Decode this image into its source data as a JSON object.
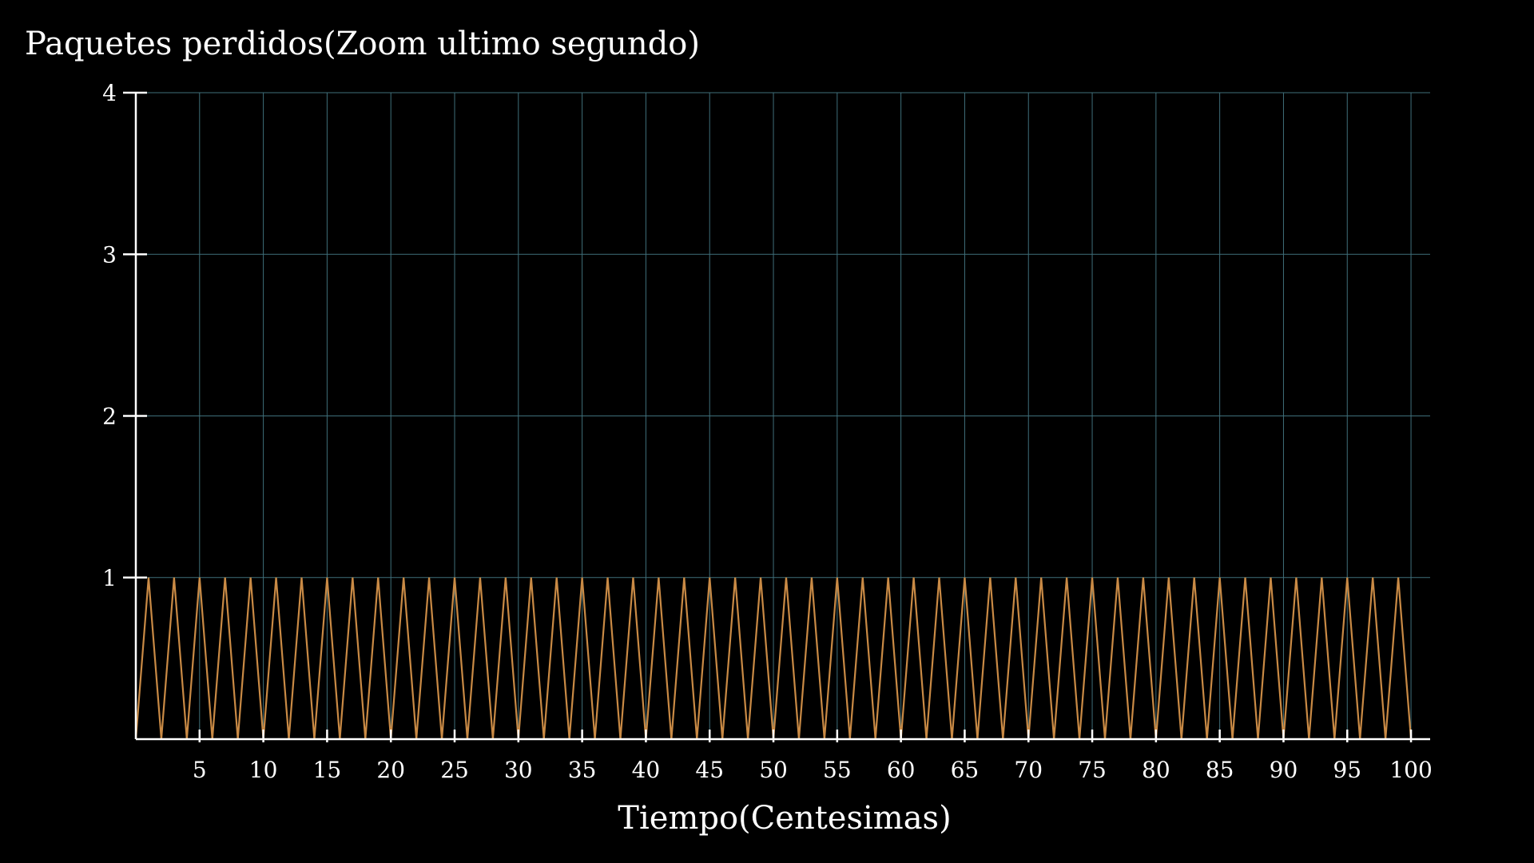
{
  "chart_data": {
    "type": "line",
    "title": "Paquetes perdidos(Zoom ultimo segundo)",
    "xlabel": "Tiempo(Centesimas)",
    "ylabel": "",
    "xlim": [
      0,
      101.5
    ],
    "ylim": [
      0,
      4
    ],
    "xticks": [
      5,
      10,
      15,
      20,
      25,
      30,
      35,
      40,
      45,
      50,
      55,
      60,
      65,
      70,
      75,
      80,
      85,
      90,
      95,
      100
    ],
    "yticks": [
      1,
      2,
      3,
      4
    ],
    "grid": true,
    "series": [
      {
        "color": "#c98a45",
        "x": [
          0,
          1,
          2,
          3,
          4,
          5,
          6,
          7,
          8,
          9,
          10,
          11,
          12,
          13,
          14,
          15,
          16,
          17,
          18,
          19,
          20,
          21,
          22,
          23,
          24,
          25,
          26,
          27,
          28,
          29,
          30,
          31,
          32,
          33,
          34,
          35,
          36,
          37,
          38,
          39,
          40,
          41,
          42,
          43,
          44,
          45,
          46,
          47,
          48,
          49,
          50,
          51,
          52,
          53,
          54,
          55,
          56,
          57,
          58,
          59,
          60,
          61,
          62,
          63,
          64,
          65,
          66,
          67,
          68,
          69,
          70,
          71,
          72,
          73,
          74,
          75,
          76,
          77,
          78,
          79,
          80,
          81,
          82,
          83,
          84,
          85,
          86,
          87,
          88,
          89,
          90,
          91,
          92,
          93,
          94,
          95,
          96,
          97,
          98,
          99,
          100
        ],
        "y": [
          0,
          1,
          0,
          1,
          0,
          1,
          0,
          1,
          0,
          1,
          0,
          1,
          0,
          1,
          0,
          1,
          0,
          1,
          0,
          1,
          0,
          1,
          0,
          1,
          0,
          1,
          0,
          1,
          0,
          1,
          0,
          1,
          0,
          1,
          0,
          1,
          0,
          1,
          0,
          1,
          0,
          1,
          0,
          1,
          0,
          1,
          0,
          1,
          0,
          1,
          0,
          1,
          0,
          1,
          0,
          1,
          0,
          1,
          0,
          1,
          0,
          1,
          0,
          1,
          0,
          1,
          0,
          1,
          0,
          1,
          0,
          1,
          0,
          1,
          0,
          1,
          0,
          1,
          0,
          1,
          0,
          1,
          0,
          1,
          0,
          1,
          0,
          1,
          0,
          1,
          0,
          1,
          0,
          1,
          0,
          1,
          0,
          1,
          0,
          1,
          0
        ]
      }
    ]
  },
  "colors": {
    "background": "#000000",
    "grid": "#3f6f7a",
    "axis": "#ffffff",
    "text": "#ffffff"
  }
}
